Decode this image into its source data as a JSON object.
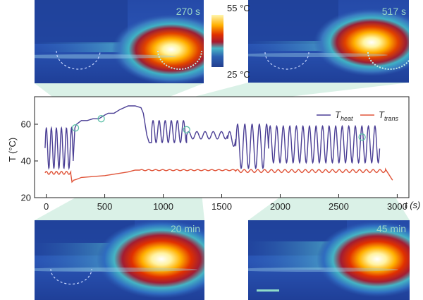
{
  "panels": [
    {
      "id": "top-left",
      "time_label": "270 s"
    },
    {
      "id": "top-right",
      "time_label": "517 s"
    },
    {
      "id": "bottom-left",
      "time_label": "20 min"
    },
    {
      "id": "bottom-right",
      "time_label": "45 min"
    }
  ],
  "colorbar": {
    "max_label": "55 °C",
    "min_label": "25 °C"
  },
  "chart_data": {
    "type": "line",
    "xlabel": "t (s)",
    "ylabel": "T (°C)",
    "xlim": [
      -100,
      3100
    ],
    "ylim": [
      20,
      75
    ],
    "xticks": [
      0,
      500,
      1000,
      1500,
      2000,
      2500,
      3000
    ],
    "yticks": [
      20,
      40,
      60
    ],
    "legend_placement": "top-right",
    "marked_points": [
      [
        250,
        58
      ],
      [
        470,
        63
      ],
      [
        1200,
        57
      ],
      [
        2700,
        53
      ]
    ],
    "series": [
      {
        "name": "T_heat",
        "legend_main": "T",
        "legend_sub": "heat",
        "color": "#4b3f95",
        "segments": [
          {
            "type": "oscillation",
            "t_start": -10,
            "t_end": 230,
            "mean": 47,
            "amplitude": 11,
            "period": 43
          },
          {
            "type": "points",
            "x": [
              230,
              245,
              260,
              300,
              350,
              400,
              450,
              500,
              530,
              580,
              630,
              700,
              760,
              810,
              830,
              845,
              860,
              880,
              900
            ],
            "y": [
              40,
              58,
              60,
              62,
              62,
              63,
              63,
              65,
              66,
              66,
              68,
              70,
              70,
              69,
              66,
              60,
              54,
              50,
              50
            ]
          },
          {
            "type": "oscillation",
            "t_start": 900,
            "t_end": 1200,
            "mean": 56,
            "amplitude": 6,
            "period": 52
          },
          {
            "type": "oscillation",
            "t_start": 1200,
            "t_end": 1550,
            "mean": 54,
            "amplitude": 2,
            "period": 70
          },
          {
            "type": "oscillation",
            "t_start": 1550,
            "t_end": 1620,
            "mean": 52,
            "amplitude": 4,
            "period": 70
          },
          {
            "type": "oscillation",
            "t_start": 1620,
            "t_end": 1900,
            "mean": 48,
            "amplitude": 12,
            "period": 62
          },
          {
            "type": "oscillation",
            "t_start": 1900,
            "t_end": 2850,
            "mean": 49,
            "amplitude": 10,
            "period": 56
          }
        ]
      },
      {
        "name": "T_trans",
        "legend_main": "T",
        "legend_sub": "trans",
        "color": "#e0553a",
        "segments": [
          {
            "type": "oscillation",
            "t_start": -10,
            "t_end": 210,
            "mean": 33.5,
            "amplitude": 0.8,
            "period": 43
          },
          {
            "type": "points",
            "x": [
              210,
              220,
              235,
              260,
              300,
              400,
              500,
              600,
              700,
              760,
              800
            ],
            "y": [
              33,
              28.5,
              29.5,
              30,
              31,
              31.5,
              32,
              33,
              34,
              35,
              35
            ]
          },
          {
            "type": "oscillation",
            "t_start": 800,
            "t_end": 1620,
            "mean": 35,
            "amplitude": 0.3,
            "period": 60
          },
          {
            "type": "oscillation",
            "t_start": 1620,
            "t_end": 2900,
            "mean": 34.5,
            "amplitude": 0.8,
            "period": 58
          },
          {
            "type": "points",
            "x": [
              2900,
              2960
            ],
            "y": [
              35.5,
              29.5
            ]
          }
        ]
      }
    ]
  }
}
